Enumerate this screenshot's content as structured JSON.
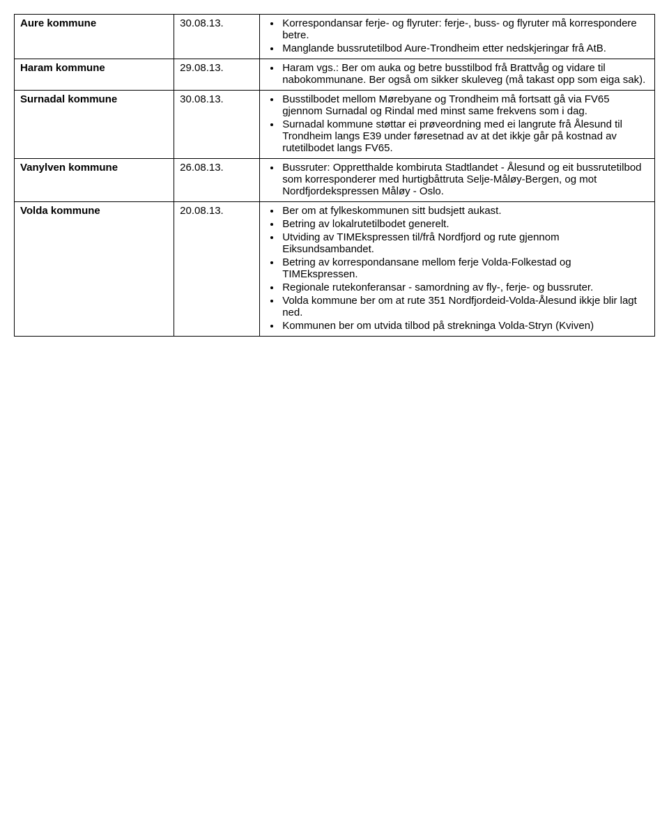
{
  "rows": [
    {
      "name": "Aure kommune",
      "date": "30.08.13.",
      "items": [
        "Korrespondansar ferje- og flyruter: ferje-, buss- og flyruter må korrespondere betre.",
        "Manglande bussrutetilbod Aure-Trondheim etter nedskjeringar frå AtB."
      ]
    },
    {
      "name": "Haram kommune",
      "date": "29.08.13.",
      "items": [
        "Haram vgs.: Ber om auka og betre busstilbod frå Brattvåg og vidare til nabokommunane. Ber også om sikker skuleveg (må takast opp som eiga sak)."
      ]
    },
    {
      "name": "Surnadal kommune",
      "date": "30.08.13.",
      "items": [
        "Busstilbodet mellom Mørebyane og Trondheim må fortsatt gå via FV65 gjennom Surnadal og Rindal med minst same frekvens som i dag.",
        "Surnadal kommune støttar ei prøveordning med ei langrute frå Ålesund til Trondheim langs E39 under føresetnad av at det ikkje går på kostnad av rutetilbodet langs FV65."
      ]
    },
    {
      "name": "Vanylven kommune",
      "date": "26.08.13.",
      "items": [
        "Bussruter: Oppretthalde kombiruta Stadtlandet - Ålesund og eit bussrutetilbod som korresponderer med hurtigbåttruta Selje-Måløy-Bergen, og mot Nordfjordekspressen Måløy - Oslo."
      ]
    },
    {
      "name": "Volda kommune",
      "date": "20.08.13.",
      "items": [
        "Ber om at fylkeskommunen sitt budsjett aukast.",
        "Betring av lokalrutetilbodet generelt.",
        "Utviding av TIMEkspressen til/frå Nordfjord og rute gjennom Eiksundsambandet.",
        "Betring av korrespondansane mellom ferje Volda-Folkestad og TIMEkspressen.",
        "Regionale rutekonferansar - samordning av fly-, ferje- og bussruter.",
        "Volda kommune ber om at rute 351 Nordfjordeid-Volda-Ålesund ikkje blir lagt ned.",
        "Kommunen ber om utvida tilbod på strekninga Volda-Stryn (Kviven)"
      ]
    }
  ]
}
